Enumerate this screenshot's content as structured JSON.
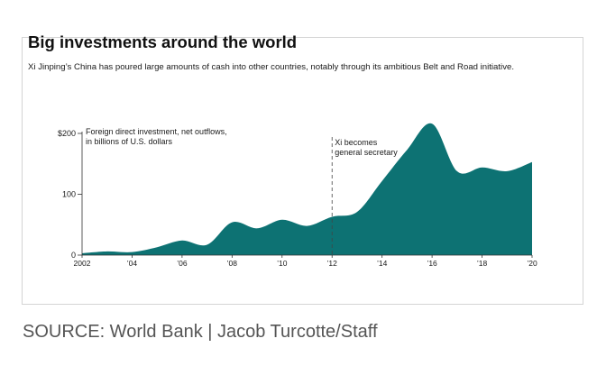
{
  "card": {
    "title": "Big investments around the world",
    "subtitle": "Xi Jinping’s China has poured large amounts of cash into other countries, notably through its ambitious Belt and Road initiative."
  },
  "source_line": "SOURCE: World Bank | Jacob Turcotte/Staff",
  "chart_data": {
    "type": "area",
    "title": "Big investments around the world",
    "subtitle": "Xi Jinping’s China has poured large amounts of cash into other countries, notably through its ambitious Belt and Road initiative.",
    "series_label_lines": [
      "Foreign direct investment, net outflows,",
      "in billions of U.S. dollars"
    ],
    "x": [
      2002,
      2003,
      2004,
      2005,
      2006,
      2007,
      2008,
      2009,
      2010,
      2011,
      2012,
      2013,
      2014,
      2015,
      2016,
      2017,
      2018,
      2019,
      2020
    ],
    "values": [
      3,
      6,
      5,
      13,
      24,
      17,
      54,
      44,
      58,
      48,
      63,
      71,
      122,
      173,
      216,
      138,
      144,
      138,
      153
    ],
    "xlim": [
      2002,
      2020
    ],
    "ylim": [
      0,
      200
    ],
    "x_ticks": [
      {
        "value": 2002,
        "label": "2002"
      },
      {
        "value": 2004,
        "label": "’04"
      },
      {
        "value": 2006,
        "label": "’06"
      },
      {
        "value": 2008,
        "label": "’08"
      },
      {
        "value": 2010,
        "label": "’10"
      },
      {
        "value": 2012,
        "label": "’12"
      },
      {
        "value": 2014,
        "label": "’14"
      },
      {
        "value": 2016,
        "label": "’16"
      },
      {
        "value": 2018,
        "label": "’18"
      },
      {
        "value": 2020,
        "label": "’20"
      }
    ],
    "y_ticks": [
      {
        "value": 0,
        "label": "0"
      },
      {
        "value": 100,
        "label": "100"
      },
      {
        "value": 200,
        "label": "$200"
      }
    ],
    "annotation": {
      "x": 2012,
      "lines": [
        "Xi becomes",
        "general secretary"
      ]
    },
    "grid": false,
    "legend": "none",
    "colors": {
      "area": "#0d7273",
      "axis": "#333333",
      "text": "#1a1a1a"
    }
  }
}
